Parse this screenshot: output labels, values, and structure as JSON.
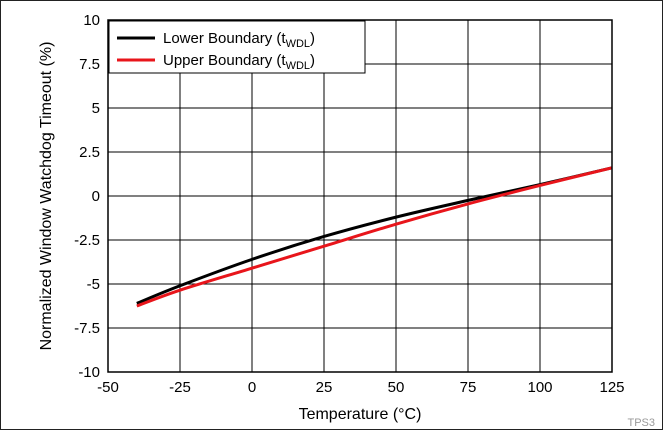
{
  "chart_data": {
    "type": "line",
    "title": "",
    "xlabel": "Temperature (°C)",
    "ylabel": "Normalized Window Watchdog Timeout (%)",
    "xlim": [
      -50,
      125
    ],
    "ylim": [
      -10,
      10
    ],
    "xticks": [
      "-50",
      "-25",
      "0",
      "25",
      "50",
      "75",
      "100",
      "125"
    ],
    "yticks": [
      "10",
      "7.5",
      "5",
      "2.5",
      "0",
      "-2.5",
      "-5",
      "-7.5",
      "-10"
    ],
    "grid": true,
    "legend_position": "top-left",
    "series": [
      {
        "name": "Lower Boundary (tWDL)",
        "legend_main": "Lower Boundary (t",
        "legend_sub": "WDL",
        "legend_end": ")",
        "color": "#000000",
        "x": [
          -40,
          -25,
          0,
          25,
          50,
          75,
          100,
          125
        ],
        "y": [
          -6.1,
          -5.1,
          -3.6,
          -2.3,
          -1.2,
          -0.25,
          0.65,
          1.6
        ]
      },
      {
        "name": "Upper Boundary (tWDL)",
        "legend_main": "Upper Boundary (t",
        "legend_sub": "WDL",
        "legend_end": ")",
        "color": "#e8151b",
        "x": [
          -40,
          -25,
          0,
          25,
          50,
          75,
          100,
          125
        ],
        "y": [
          -6.25,
          -5.35,
          -4.1,
          -2.85,
          -1.6,
          -0.45,
          0.6,
          1.6
        ]
      }
    ]
  },
  "footer": {
    "code": "TPS3"
  }
}
